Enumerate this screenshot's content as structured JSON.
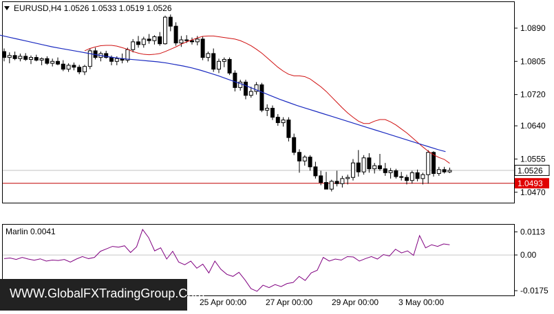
{
  "header": {
    "symbol_label": "EURUSD,H4  1.0526 1.0533 1.0519 1.0526",
    "menu_icon": "triangle-down-icon"
  },
  "indicator": {
    "label": "Marlin 0.0041"
  },
  "watermark": {
    "text": "WWW.GlobalFXTradingGroup.Com"
  },
  "colors": {
    "bull_body": "#ffffff",
    "bear_body": "#000000",
    "ma_fast": "#d01010",
    "ma_slow": "#1a2ac0",
    "support_line": "#c00000",
    "marlin": "#800080",
    "current_price_bg": "#ffffff",
    "support_price_bg": "#e00000"
  },
  "chart_data": [
    {
      "type": "candlestick",
      "symbol": "EURUSD",
      "timeframe": "H4",
      "price_axis": {
        "ticks": [
          "1.0890",
          "1.0805",
          "1.0720",
          "1.0640",
          "1.0555",
          "1.0470"
        ],
        "range": [
          1.0445,
          1.0955
        ]
      },
      "time_axis": {
        "ticks": [
          "25 Apr 00:00",
          "27 Apr 00:00",
          "29 Apr 00:00",
          "3 May 00:00"
        ]
      },
      "current_price": "1.0526",
      "support_level": {
        "price": 1.0493,
        "label": "1.0493"
      },
      "candles": [
        [
          1.083,
          1.0838,
          1.0805,
          1.0815
        ],
        [
          1.0815,
          1.0828,
          1.08,
          1.082
        ],
        [
          1.082,
          1.083,
          1.0808,
          1.0812
        ],
        [
          1.0812,
          1.0825,
          1.0805,
          1.0818
        ],
        [
          1.0818,
          1.0826,
          1.0806,
          1.081
        ],
        [
          1.081,
          1.082,
          1.0798,
          1.0815
        ],
        [
          1.0815,
          1.0822,
          1.0805,
          1.0808
        ],
        [
          1.0808,
          1.0815,
          1.0795,
          1.0812
        ],
        [
          1.0812,
          1.0818,
          1.0796,
          1.08
        ],
        [
          1.08,
          1.0812,
          1.0792,
          1.0805
        ],
        [
          1.0805,
          1.0815,
          1.0795,
          1.0798
        ],
        [
          1.0798,
          1.0808,
          1.078,
          1.0785
        ],
        [
          1.0785,
          1.08,
          1.0778,
          1.0795
        ],
        [
          1.0795,
          1.0802,
          1.0782,
          1.079
        ],
        [
          1.079,
          1.0796,
          1.0772,
          1.0778
        ],
        [
          1.0778,
          1.0796,
          1.077,
          1.0792
        ],
        [
          1.0792,
          1.0838,
          1.0785,
          1.0832
        ],
        [
          1.0832,
          1.084,
          1.081,
          1.0815
        ],
        [
          1.0815,
          1.083,
          1.0805,
          1.0825
        ],
        [
          1.0825,
          1.0832,
          1.0812,
          1.0815
        ],
        [
          1.0815,
          1.082,
          1.0795,
          1.0805
        ],
        [
          1.0805,
          1.0818,
          1.0795,
          1.0812
        ],
        [
          1.0812,
          1.0825,
          1.08,
          1.0808
        ],
        [
          1.0808,
          1.084,
          1.0802,
          1.0835
        ],
        [
          1.0835,
          1.0862,
          1.0828,
          1.0855
        ],
        [
          1.0855,
          1.087,
          1.084,
          1.0848
        ],
        [
          1.0848,
          1.0868,
          1.084,
          1.0862
        ],
        [
          1.0862,
          1.0875,
          1.085,
          1.0858
        ],
        [
          1.0858,
          1.0872,
          1.0848,
          1.0868
        ],
        [
          1.0868,
          1.088,
          1.0845,
          1.085
        ],
        [
          1.085,
          1.0922,
          1.0848,
          1.0918
        ],
        [
          1.0918,
          1.0925,
          1.0882,
          1.0895
        ],
        [
          1.0895,
          1.0905,
          1.0845,
          1.0852
        ],
        [
          1.0852,
          1.087,
          1.0842,
          1.086
        ],
        [
          1.086,
          1.0872,
          1.0852,
          1.0858
        ],
        [
          1.0858,
          1.0866,
          1.0848,
          1.0855
        ],
        [
          1.0855,
          1.087,
          1.0846,
          1.0862
        ],
        [
          1.0862,
          1.0868,
          1.0808,
          1.0815
        ],
        [
          1.0815,
          1.083,
          1.0805,
          1.0825
        ],
        [
          1.0825,
          1.0838,
          1.0778,
          1.0785
        ],
        [
          1.0785,
          1.0812,
          1.0775,
          1.0805
        ],
        [
          1.0805,
          1.0815,
          1.079,
          1.081
        ],
        [
          1.081,
          1.0815,
          1.077,
          1.0775
        ],
        [
          1.0775,
          1.0782,
          1.0728,
          1.0738
        ],
        [
          1.0738,
          1.0758,
          1.073,
          1.0752
        ],
        [
          1.0752,
          1.0758,
          1.0708,
          1.0718
        ],
        [
          1.0718,
          1.074,
          1.0712,
          1.0728
        ],
        [
          1.0728,
          1.0752,
          1.072,
          1.0745
        ],
        [
          1.0745,
          1.075,
          1.0675,
          1.068
        ],
        [
          1.068,
          1.0695,
          1.0665,
          1.0685
        ],
        [
          1.0685,
          1.0692,
          1.0655,
          1.0662
        ],
        [
          1.0662,
          1.067,
          1.064,
          1.0648
        ],
        [
          1.0648,
          1.0662,
          1.0638,
          1.0655
        ],
        [
          1.0655,
          1.0662,
          1.06,
          1.061
        ],
        [
          1.061,
          1.062,
          1.0565,
          1.0572
        ],
        [
          1.0572,
          1.058,
          1.052,
          1.055
        ],
        [
          1.055,
          1.0565,
          1.0538,
          1.056
        ],
        [
          1.056,
          1.0565,
          1.0525,
          1.0535
        ],
        [
          1.0535,
          1.0548,
          1.0505,
          1.0512
        ],
        [
          1.0512,
          1.0525,
          1.0488,
          1.0495
        ],
        [
          1.0495,
          1.0522,
          1.0478,
          1.0478
        ],
        [
          1.0478,
          1.0502,
          1.0472,
          1.0498
        ],
        [
          1.0498,
          1.0525,
          1.0485,
          1.0492
        ],
        [
          1.0492,
          1.0512,
          1.0482,
          1.0505
        ],
        [
          1.0505,
          1.0515,
          1.049,
          1.0508
        ],
        [
          1.0508,
          1.0555,
          1.05,
          1.0545
        ],
        [
          1.0545,
          1.0578,
          1.051,
          1.0522
        ],
        [
          1.0522,
          1.0565,
          1.0515,
          1.0558
        ],
        [
          1.0558,
          1.057,
          1.052,
          1.053
        ],
        [
          1.053,
          1.0545,
          1.0518,
          1.0538
        ],
        [
          1.0538,
          1.0568,
          1.0525,
          1.053
        ],
        [
          1.053,
          1.0545,
          1.0512,
          1.052
        ],
        [
          1.052,
          1.0532,
          1.0505,
          1.0525
        ],
        [
          1.0525,
          1.053,
          1.0505,
          1.051
        ],
        [
          1.051,
          1.0522,
          1.05,
          1.0508
        ],
        [
          1.0508,
          1.0515,
          1.049,
          1.05
        ],
        [
          1.05,
          1.0525,
          1.0492,
          1.052
        ],
        [
          1.052,
          1.0528,
          1.0498,
          1.0505
        ],
        [
          1.0505,
          1.052,
          1.049,
          1.0515
        ],
        [
          1.0515,
          1.0578,
          1.0492,
          1.0572
        ],
        [
          1.0572,
          1.0575,
          1.051,
          1.0518
        ],
        [
          1.0518,
          1.0535,
          1.0512,
          1.0528
        ],
        [
          1.0528,
          1.0535,
          1.0518,
          1.0522
        ],
        [
          1.0522,
          1.0533,
          1.0519,
          1.0526
        ]
      ],
      "ma_fast": [
        1.0832,
        1.0838,
        1.0842,
        1.0845,
        1.0846,
        1.0846,
        1.0844,
        1.084,
        1.0836,
        1.083,
        1.0826,
        1.0823,
        1.0822,
        1.0823,
        1.0825,
        1.083,
        1.0836,
        1.0842,
        1.0849,
        1.0855,
        1.086,
        1.0865,
        1.0869,
        1.087,
        1.087,
        1.0868,
        1.0866,
        1.0864,
        1.0862,
        1.0858,
        1.0852,
        1.0845,
        1.0836,
        1.0826,
        1.0814,
        1.0802,
        1.079,
        1.078,
        1.0772,
        1.0768,
        1.0768,
        1.0766,
        1.076,
        1.075,
        1.074,
        1.0728,
        1.0714,
        1.07,
        1.0686,
        1.0673,
        1.0662,
        1.0652,
        1.0646,
        1.0646,
        1.0652,
        1.0656,
        1.0656,
        1.065,
        1.0642,
        1.0632,
        1.0622,
        1.061,
        1.0598,
        1.0586,
        1.0575,
        1.0566,
        1.0559,
        1.0554,
        1.0544
      ],
      "ma_slow": [
        1.0872,
        1.0867,
        1.0862,
        1.0857,
        1.0852,
        1.0847,
        1.0842,
        1.0838,
        1.0834,
        1.083,
        1.0826,
        1.0822,
        1.0818,
        1.0815,
        1.0812,
        1.081,
        1.0808,
        1.0806,
        1.0804,
        1.0801,
        1.0797,
        1.0793,
        1.0788,
        1.0782,
        1.0775,
        1.0768,
        1.076,
        1.0752,
        1.0744,
        1.0735,
        1.0726,
        1.0717,
        1.0708,
        1.07,
        1.0692,
        1.0685,
        1.0678,
        1.0671,
        1.0664,
        1.0657,
        1.065,
        1.0643,
        1.0636,
        1.0629,
        1.0622,
        1.0615,
        1.0608,
        1.0601,
        1.0594,
        1.0587,
        1.058,
        1.0574
      ],
      "marlin": {
        "label": "Marlin 0.0041",
        "ticks": [
          "0.0113",
          "0.00",
          "-0.0175"
        ],
        "range": [
          -0.0195,
          0.0145
        ],
        "values": [
          -0.0018,
          -0.0015,
          -0.0022,
          -0.0012,
          -0.002,
          -0.0026,
          -0.0019,
          -0.003,
          -0.0025,
          -0.0027,
          -0.0022,
          -0.0035,
          -0.002,
          -0.0008,
          -0.0018,
          -0.0012,
          0.0018,
          0.003,
          0.0042,
          0.0038,
          0.0045,
          0.0012,
          0.004,
          0.0125,
          0.0085,
          0.002,
          0.0035,
          -0.002,
          0.0018,
          -0.0035,
          -0.0048,
          -0.003,
          -0.0065,
          -0.0045,
          -0.0088,
          -0.003,
          -0.007,
          -0.0095,
          -0.0105,
          -0.0085,
          -0.0122,
          -0.0165,
          -0.0178,
          -0.0148,
          -0.016,
          -0.0145,
          -0.0155,
          -0.014,
          -0.0135,
          -0.0105,
          -0.0125,
          -0.0088,
          -0.0075,
          -0.0012,
          -0.003,
          -0.002,
          -0.0025,
          -0.0008,
          -0.001,
          -0.003,
          -0.0018,
          -0.0008,
          -0.002,
          0.0002,
          -0.0005,
          0.0028,
          0.001,
          0.002,
          -0.0002,
          0.0095,
          0.0035,
          0.005,
          0.0042,
          0.0054,
          0.005
        ]
      }
    }
  ]
}
